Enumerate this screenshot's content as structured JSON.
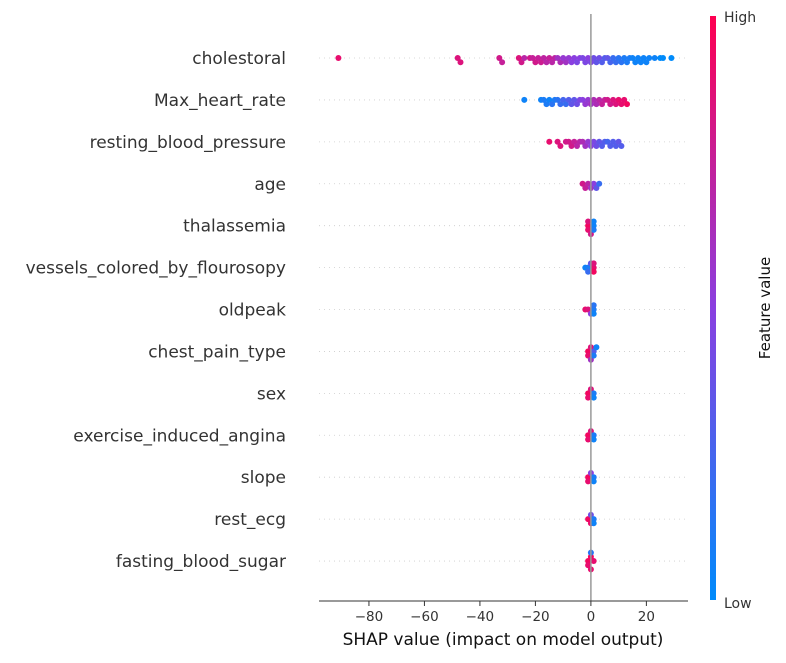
{
  "chart_data": {
    "type": "scatter",
    "subtype": "shap-beeswarm-summary",
    "xlabel": "SHAP value (impact on model output)",
    "xlim": [
      -98,
      35
    ],
    "xticks": [
      -80,
      -60,
      -40,
      -20,
      0,
      20
    ],
    "x_tick_labels": [
      "−80",
      "−60",
      "−40",
      "−20",
      "0",
      "20"
    ],
    "zero_line": true,
    "grid": false,
    "colorbar": {
      "label": "Feature value",
      "high_label": "High",
      "low_label": "Low",
      "low_color": "#008bfb",
      "mid_color": "#8a3fe0",
      "high_color": "#ff0051"
    },
    "features": [
      {
        "name": "cholestoral",
        "points": [
          [
            -91,
            0.9
          ],
          [
            -48,
            0.85
          ],
          [
            -47,
            0.85
          ],
          [
            -33,
            0.8
          ],
          [
            -32,
            0.75
          ],
          [
            -26,
            0.85
          ],
          [
            -25,
            0.8
          ],
          [
            -24,
            0.7
          ],
          [
            -22,
            0.8
          ],
          [
            -21,
            0.75
          ],
          [
            -20,
            0.8
          ],
          [
            -19,
            0.75
          ],
          [
            -18,
            0.78
          ],
          [
            -17,
            0.72
          ],
          [
            -16,
            0.7
          ],
          [
            -15,
            0.75
          ],
          [
            -14,
            0.7
          ],
          [
            -13,
            0.72
          ],
          [
            -12,
            0.6
          ],
          [
            -11,
            0.65
          ],
          [
            -10,
            0.55
          ],
          [
            -9,
            0.6
          ],
          [
            -8,
            0.55
          ],
          [
            -7,
            0.5
          ],
          [
            -6,
            0.5
          ],
          [
            -5,
            0.45
          ],
          [
            -4,
            0.5
          ],
          [
            -3,
            0.45
          ],
          [
            -2,
            0.45
          ],
          [
            -1,
            0.5
          ],
          [
            0,
            0.45
          ],
          [
            1,
            0.4
          ],
          [
            2,
            0.35
          ],
          [
            3,
            0.4
          ],
          [
            4,
            0.3
          ],
          [
            5,
            0.3
          ],
          [
            6,
            0.35
          ],
          [
            7,
            0.25
          ],
          [
            8,
            0.2
          ],
          [
            9,
            0.2
          ],
          [
            10,
            0.15
          ],
          [
            11,
            0.15
          ],
          [
            12,
            0.1
          ],
          [
            13,
            0.1
          ],
          [
            14,
            0.1
          ],
          [
            15,
            0.05
          ],
          [
            16,
            0.05
          ],
          [
            17,
            0.05
          ],
          [
            18,
            0.05
          ],
          [
            19,
            0.05
          ],
          [
            20,
            0.05
          ],
          [
            21,
            0.05
          ],
          [
            23,
            0.05
          ],
          [
            25,
            0.0
          ],
          [
            26,
            0.0
          ],
          [
            29,
            0.0
          ]
        ]
      },
      {
        "name": "Max_heart_rate",
        "points": [
          [
            -24,
            0.05
          ],
          [
            -18,
            0.05
          ],
          [
            -17,
            0.1
          ],
          [
            -16,
            0.1
          ],
          [
            -15,
            0.05
          ],
          [
            -14,
            0.15
          ],
          [
            -13,
            0.1
          ],
          [
            -12,
            0.15
          ],
          [
            -11,
            0.2
          ],
          [
            -10,
            0.25
          ],
          [
            -9,
            0.2
          ],
          [
            -8,
            0.3
          ],
          [
            -7,
            0.35
          ],
          [
            -6,
            0.35
          ],
          [
            -5,
            0.4
          ],
          [
            -4,
            0.45
          ],
          [
            -3,
            0.5
          ],
          [
            -2,
            0.55
          ],
          [
            -1,
            0.55
          ],
          [
            0,
            0.6
          ],
          [
            1,
            0.65
          ],
          [
            2,
            0.65
          ],
          [
            3,
            0.7
          ],
          [
            4,
            0.75
          ],
          [
            5,
            0.75
          ],
          [
            6,
            0.8
          ],
          [
            7,
            0.8
          ],
          [
            8,
            0.85
          ],
          [
            9,
            0.85
          ],
          [
            10,
            0.9
          ],
          [
            11,
            0.9
          ],
          [
            12,
            0.9
          ],
          [
            13,
            0.95
          ]
        ]
      },
      {
        "name": "resting_blood_pressure",
        "points": [
          [
            -15,
            0.9
          ],
          [
            -12,
            0.85
          ],
          [
            -11,
            0.85
          ],
          [
            -9,
            0.8
          ],
          [
            -8,
            0.8
          ],
          [
            -7,
            0.8
          ],
          [
            -6,
            0.75
          ],
          [
            -5,
            0.7
          ],
          [
            -4,
            0.7
          ],
          [
            -3,
            0.65
          ],
          [
            -2,
            0.6
          ],
          [
            -1,
            0.55
          ],
          [
            0,
            0.5
          ],
          [
            1,
            0.45
          ],
          [
            2,
            0.4
          ],
          [
            3,
            0.35
          ],
          [
            4,
            0.3
          ],
          [
            5,
            0.3
          ],
          [
            6,
            0.25
          ],
          [
            7,
            0.3
          ],
          [
            8,
            0.3
          ],
          [
            9,
            0.3
          ],
          [
            10,
            0.35
          ],
          [
            11,
            0.3
          ]
        ]
      },
      {
        "name": "age",
        "points": [
          [
            -3,
            0.8
          ],
          [
            -2,
            0.75
          ],
          [
            -1,
            0.7
          ],
          [
            0,
            0.6
          ],
          [
            1,
            0.5
          ],
          [
            2,
            0.35
          ],
          [
            3,
            0.2
          ]
        ]
      },
      {
        "name": "thalassemia",
        "points": [
          [
            -1,
            0.95
          ],
          [
            -1,
            0.9
          ],
          [
            -1,
            0.85
          ],
          [
            0,
            0.8
          ],
          [
            1,
            0.05
          ],
          [
            1,
            0.1
          ],
          [
            1,
            0.05
          ]
        ]
      },
      {
        "name": "vessels_colored_by_flourosopy",
        "points": [
          [
            -2,
            0.05
          ],
          [
            -1,
            0.1
          ],
          [
            -1,
            0.2
          ],
          [
            0,
            0.35
          ],
          [
            1,
            0.9
          ],
          [
            1,
            0.95
          ],
          [
            1,
            0.85
          ]
        ]
      },
      {
        "name": "oldpeak",
        "points": [
          [
            -2,
            0.9
          ],
          [
            -1,
            0.85
          ],
          [
            0,
            0.5
          ],
          [
            1,
            0.1
          ],
          [
            1,
            0.05
          ],
          [
            1,
            0.15
          ]
        ]
      },
      {
        "name": "chest_pain_type",
        "points": [
          [
            -1,
            0.95
          ],
          [
            -1,
            0.9
          ],
          [
            0,
            0.85
          ],
          [
            0,
            0.6
          ],
          [
            1,
            0.3
          ],
          [
            1,
            0.1
          ],
          [
            2,
            0.05
          ]
        ]
      },
      {
        "name": "sex",
        "points": [
          [
            -1,
            0.95
          ],
          [
            -1,
            0.9
          ],
          [
            0,
            0.85
          ],
          [
            1,
            0.1
          ],
          [
            1,
            0.05
          ]
        ]
      },
      {
        "name": "exercise_induced_angina",
        "points": [
          [
            -1,
            0.95
          ],
          [
            -1,
            0.9
          ],
          [
            0,
            0.85
          ],
          [
            1,
            0.1
          ],
          [
            1,
            0.05
          ]
        ]
      },
      {
        "name": "slope",
        "points": [
          [
            -1,
            0.95
          ],
          [
            -1,
            0.9
          ],
          [
            0,
            0.5
          ],
          [
            1,
            0.1
          ],
          [
            1,
            0.05
          ]
        ]
      },
      {
        "name": "rest_ecg",
        "points": [
          [
            -1,
            0.95
          ],
          [
            0,
            0.9
          ],
          [
            0,
            0.4
          ],
          [
            1,
            0.1
          ],
          [
            1,
            0.05
          ]
        ]
      },
      {
        "name": "fasting_blood_sugar",
        "points": [
          [
            -1,
            0.95
          ],
          [
            -1,
            0.9
          ],
          [
            0,
            0.95
          ],
          [
            0,
            0.9
          ],
          [
            1,
            0.9
          ],
          [
            0,
            0.15
          ]
        ]
      }
    ]
  }
}
